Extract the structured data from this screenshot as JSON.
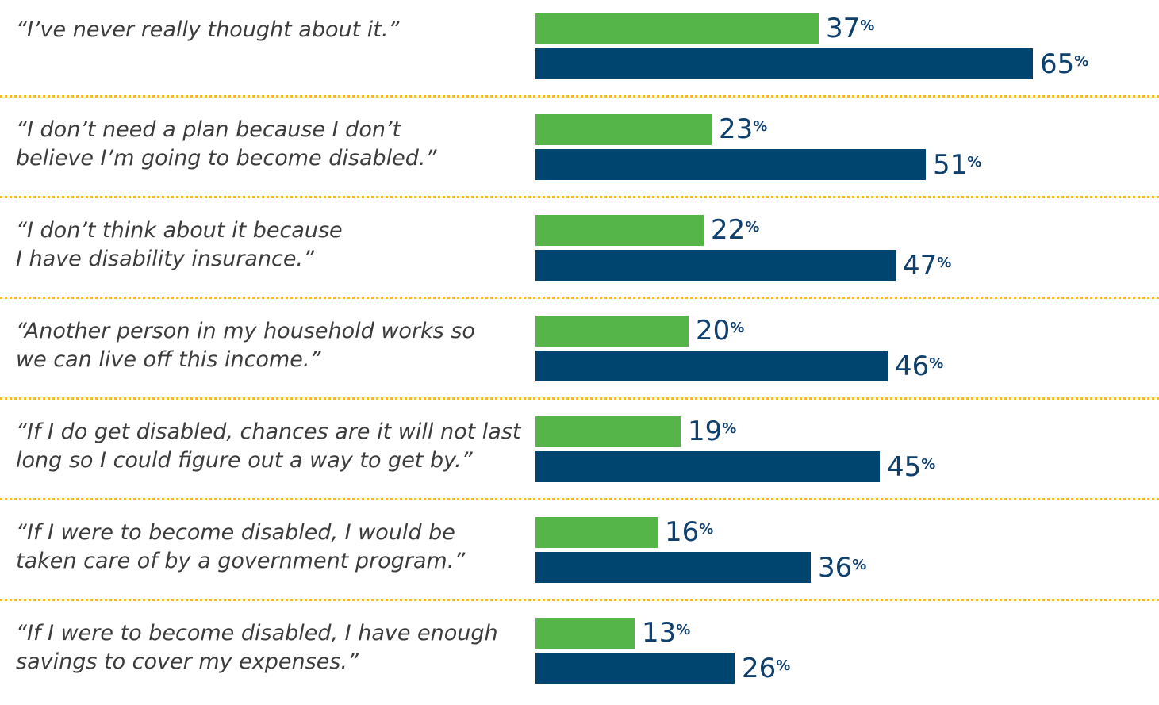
{
  "chart_data": {
    "type": "bar",
    "orientation": "horizontal",
    "categories": [
      "“I’ve never really thought about it.”",
      "“I don’t need a plan because I don’t believe I’m going to become disabled.”",
      "“I don’t think about it because I have disability insurance.”",
      "“Another person in my household works so we can live off this income.”",
      "“If I do get disabled, chances are it will not last long so I could figure out a way to get by.”",
      "“If I were to become disabled, I would be taken care of by a government program.”",
      "“If I were to become disabled, I have enough savings to cover my expenses.”"
    ],
    "category_lines": [
      [
        "“I’ve never really thought about it.”"
      ],
      [
        "“I don’t need a plan because I don’t",
        "believe I’m going to become disabled.”"
      ],
      [
        "“I don’t think about it because",
        "I have disability insurance.”"
      ],
      [
        "“Another person in my household works so",
        "we can live off this income.”"
      ],
      [
        "“If I do get disabled, chances are it will not last",
        "long so I could figure out a way to get by.”"
      ],
      [
        "“If I were to become disabled, I would be",
        "taken care of by a government program.”"
      ],
      [
        "“If I were to become disabled, I have enough",
        "savings to cover my expenses.”"
      ]
    ],
    "series": [
      {
        "values": [
          37,
          23,
          22,
          20,
          19,
          16,
          13
        ],
        "color": "#55b548"
      },
      {
        "values": [
          65,
          51,
          47,
          46,
          45,
          36,
          26
        ],
        "color": "#004470"
      }
    ],
    "value_suffix": "%",
    "xlim": [
      0,
      100
    ],
    "grid": false,
    "separator_color": "#f2b92a",
    "label_color": "#0f3f6d",
    "text_color": "#3c3c3c"
  }
}
